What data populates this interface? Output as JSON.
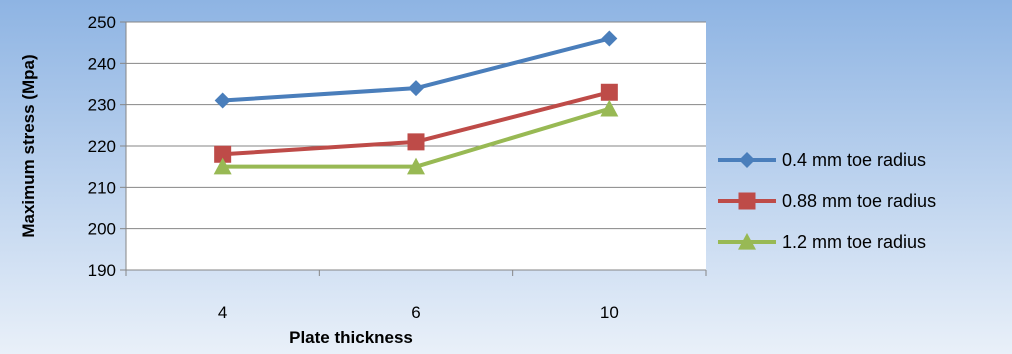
{
  "chart_data": {
    "type": "line",
    "title": "",
    "xlabel": "Plate thickness",
    "ylabel": "Maximum stress (Mpa)",
    "categories": [
      "4",
      "6",
      "10"
    ],
    "ylim": [
      190,
      250
    ],
    "yticks": [
      190,
      200,
      210,
      220,
      230,
      240,
      250
    ],
    "grid": true,
    "legend": "right",
    "series": [
      {
        "name": "0.4 mm toe radius",
        "values": [
          231,
          234,
          246
        ],
        "color": "#4a7ebb",
        "marker": "diamond"
      },
      {
        "name": "0.88 mm toe radius",
        "values": [
          218,
          221,
          233
        ],
        "color": "#be4b48",
        "marker": "square"
      },
      {
        "name": "1.2 mm toe radius",
        "values": [
          215,
          215,
          229
        ],
        "color": "#98b954",
        "marker": "triangle"
      }
    ],
    "colors": {
      "background_top": "#8eb4e3",
      "background_bottom": "#e9f0f9",
      "plot_area": "#ffffff",
      "gridline": "#868686",
      "axis": "#868686"
    }
  }
}
